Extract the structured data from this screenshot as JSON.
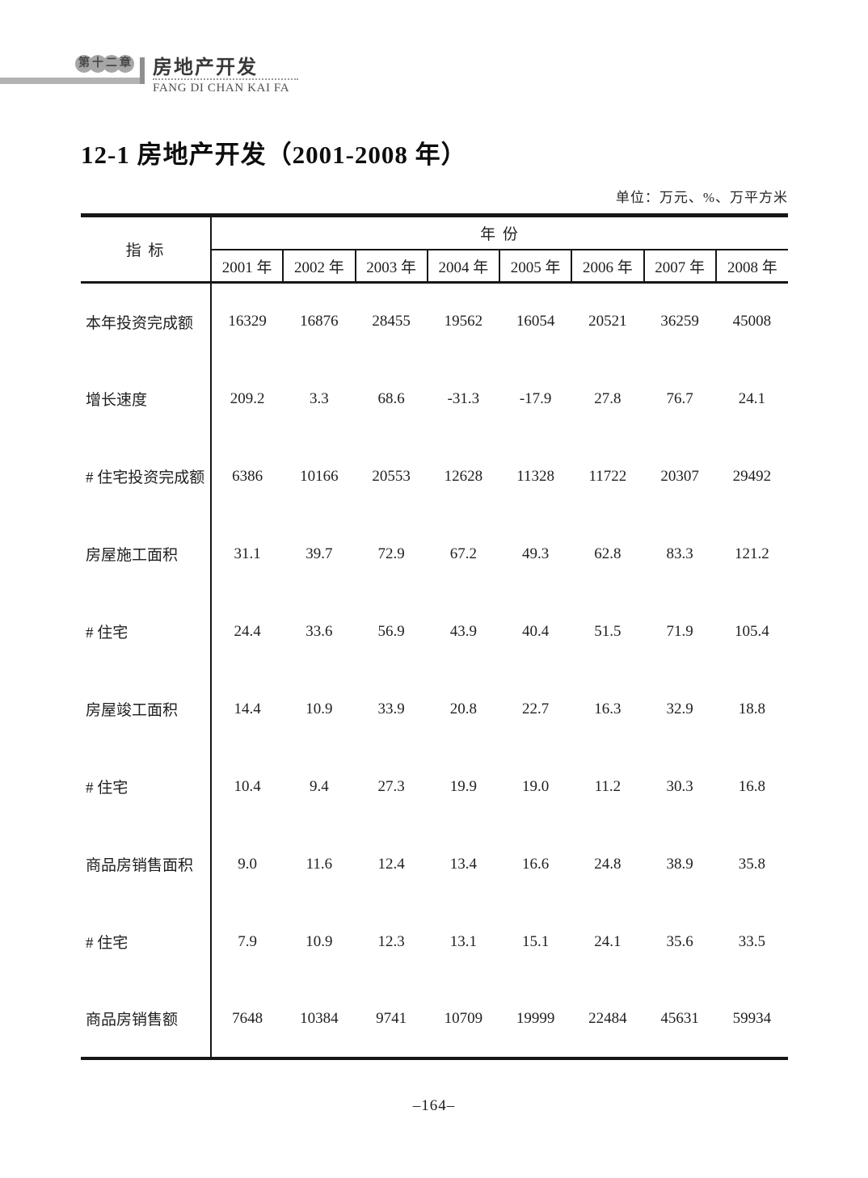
{
  "page": {
    "chapter_badge_chars": [
      "第",
      "十",
      "二",
      "章"
    ],
    "chapter_title_cn": "房地产开发",
    "chapter_title_pinyin": "FANG DI CHAN KAI FA",
    "section_title": "12-1  房地产开发（2001-2008 年）",
    "unit_note": "单位：万元、%、万平方米",
    "page_number": "–164–"
  },
  "table": {
    "indicator_header": "指  标",
    "year_group_header": "年  份",
    "year_columns": [
      "2001 年",
      "2002 年",
      "2003 年",
      "2004 年",
      "2005 年",
      "2006 年",
      "2007 年",
      "2008 年"
    ],
    "rows": [
      {
        "label": "本年投资完成额",
        "values": [
          "16329",
          "16876",
          "28455",
          "19562",
          "16054",
          "20521",
          "36259",
          "45008"
        ]
      },
      {
        "label": "增长速度",
        "values": [
          "209.2",
          "3.3",
          "68.6",
          "-31.3",
          "-17.9",
          "27.8",
          "76.7",
          "24.1"
        ]
      },
      {
        "label": "# 住宅投资完成额",
        "values": [
          "6386",
          "10166",
          "20553",
          "12628",
          "11328",
          "11722",
          "20307",
          "29492"
        ]
      },
      {
        "label": "房屋施工面积",
        "values": [
          "31.1",
          "39.7",
          "72.9",
          "67.2",
          "49.3",
          "62.8",
          "83.3",
          "121.2"
        ]
      },
      {
        "label": "# 住宅",
        "values": [
          "24.4",
          "33.6",
          "56.9",
          "43.9",
          "40.4",
          "51.5",
          "71.9",
          "105.4"
        ]
      },
      {
        "label": "房屋竣工面积",
        "values": [
          "14.4",
          "10.9",
          "33.9",
          "20.8",
          "22.7",
          "16.3",
          "32.9",
          "18.8"
        ]
      },
      {
        "label": "# 住宅",
        "values": [
          "10.4",
          "9.4",
          "27.3",
          "19.9",
          "19.0",
          "11.2",
          "30.3",
          "16.8"
        ]
      },
      {
        "label": "商品房销售面积",
        "values": [
          "9.0",
          "11.6",
          "12.4",
          "13.4",
          "16.6",
          "24.8",
          "38.9",
          "35.8"
        ]
      },
      {
        "label": "# 住宅",
        "values": [
          "7.9",
          "10.9",
          "12.3",
          "13.1",
          "15.1",
          "24.1",
          "35.6",
          "33.5"
        ]
      },
      {
        "label": "商品房销售额",
        "values": [
          "7648",
          "10384",
          "9741",
          "10709",
          "19999",
          "22484",
          "45631",
          "59934"
        ]
      }
    ]
  }
}
